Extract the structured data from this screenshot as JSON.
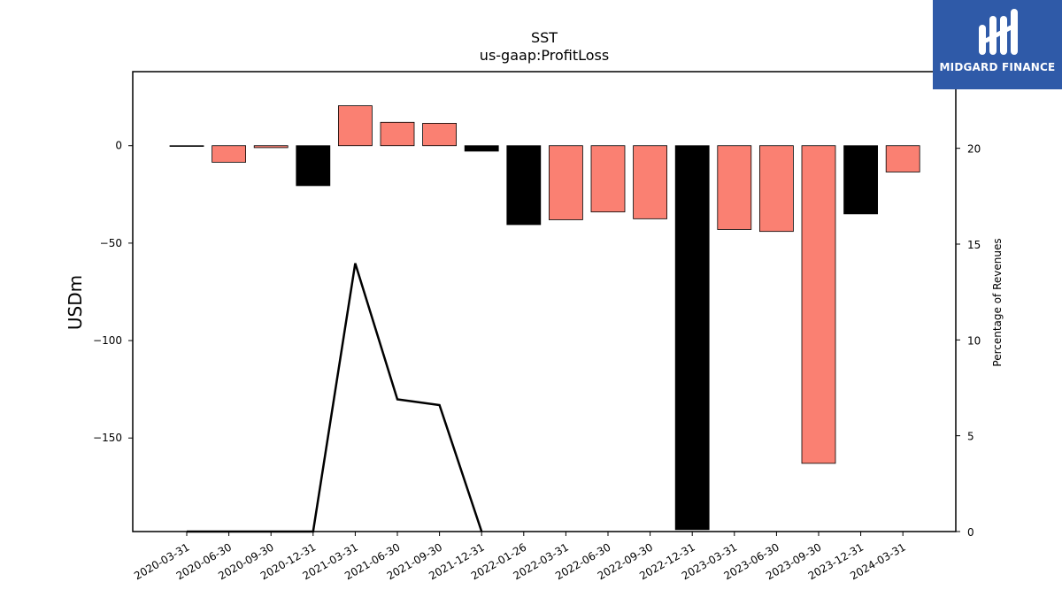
{
  "chart_data": {
    "type": "bar",
    "title": "SST",
    "subtitle": "us-gaap:ProfitLoss",
    "ylabel": "USDm",
    "y2label": "Percentage of Revenues",
    "categories": [
      "2020-03-31",
      "2020-06-30",
      "2020-09-30",
      "2020-12-31",
      "2021-03-31",
      "2021-06-30",
      "2021-09-30",
      "2021-12-31",
      "2022-01-26",
      "2022-03-31",
      "2022-06-30",
      "2022-09-30",
      "2022-12-31",
      "2023-03-31",
      "2023-06-30",
      "2023-09-30",
      "2023-12-31",
      "2024-03-31"
    ],
    "values": [
      -0.3,
      -8.5,
      -1.0,
      -20.5,
      20.5,
      12.0,
      11.5,
      -2.8,
      -40.5,
      -38.0,
      -34.0,
      -37.5,
      -197.0,
      -43.0,
      -44.0,
      -163.0,
      -35.0,
      -13.5
    ],
    "bar_colors": [
      "#fa8072",
      "#fa8072",
      "#fa8072",
      "#000000",
      "#fa8072",
      "#fa8072",
      "#fa8072",
      "#000000",
      "#000000",
      "#fa8072",
      "#fa8072",
      "#fa8072",
      "#000000",
      "#fa8072",
      "#fa8072",
      "#fa8072",
      "#000000",
      "#fa8072"
    ],
    "ylim": [
      -198,
      38
    ],
    "yticks": [
      0,
      -50,
      -100,
      -150
    ],
    "y2lim": [
      0,
      24
    ],
    "y2ticks": [
      0,
      5,
      10,
      15,
      20
    ],
    "series": [
      {
        "type": "line",
        "axis": "secondary",
        "color": "#000000",
        "values": [
          0,
          0,
          0,
          0,
          14.0,
          6.9,
          6.6,
          0,
          null,
          null,
          null,
          null,
          null,
          null,
          null,
          null,
          null,
          null
        ]
      }
    ],
    "grid": false,
    "legend": "none"
  },
  "logo": {
    "text": "MIDGARD FINANCE",
    "background": "#2f5aa8"
  }
}
